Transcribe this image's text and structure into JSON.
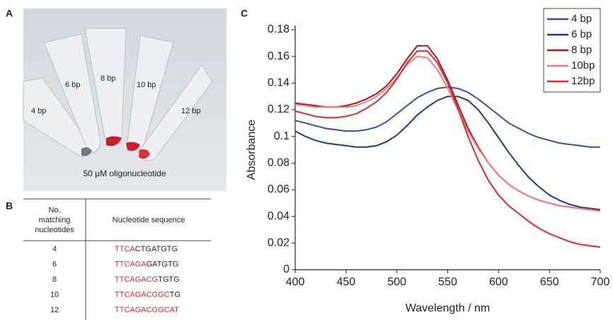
{
  "panels": {
    "a": "A",
    "b": "B",
    "c": "C"
  },
  "photo": {
    "tube_labels": [
      "4 bp",
      "6 bp",
      "8 bp",
      "10 bp",
      "12 bp"
    ],
    "caption": "50 μM oligonucleotide"
  },
  "table": {
    "header": [
      [
        "No.",
        "matching",
        "nucleotides"
      ],
      "Nucleotide sequence"
    ],
    "rows": [
      [
        "4",
        {
          "matching": "TTCA",
          "rest": "CTGATGTG"
        }
      ],
      [
        "6",
        {
          "matching": "TTCAGA",
          "rest": "GATGTG"
        }
      ],
      [
        "8",
        {
          "matching": "TTCAGACG",
          "rest": "TGTG"
        }
      ],
      [
        "10",
        {
          "matching": "TTCAGACGGC",
          "rest": "TG"
        }
      ],
      [
        "12",
        {
          "matching": "TTCAGACGGCAT",
          "rest": ""
        }
      ]
    ]
  },
  "chart_data": {
    "type": "line",
    "xlabel": "Wavelength / nm",
    "ylabel": "Absorbance",
    "x": [
      400,
      410,
      420,
      430,
      440,
      450,
      460,
      470,
      480,
      490,
      500,
      510,
      520,
      530,
      540,
      550,
      560,
      570,
      580,
      590,
      600,
      610,
      620,
      630,
      640,
      650,
      660,
      670,
      680,
      690,
      700
    ],
    "series": [
      {
        "name": "4 bp",
        "color": "#3a4ea6",
        "values": [
          0.112,
          0.11,
          0.108,
          0.106,
          0.105,
          0.104,
          0.104,
          0.105,
          0.107,
          0.111,
          0.117,
          0.123,
          0.129,
          0.133,
          0.136,
          0.137,
          0.136,
          0.133,
          0.128,
          0.122,
          0.116,
          0.11,
          0.106,
          0.102,
          0.099,
          0.097,
          0.095,
          0.094,
          0.093,
          0.092,
          0.092
        ]
      },
      {
        "name": "6 bp",
        "color": "#1c3a86",
        "values": [
          0.104,
          0.1,
          0.097,
          0.095,
          0.094,
          0.093,
          0.092,
          0.092,
          0.093,
          0.096,
          0.101,
          0.108,
          0.116,
          0.122,
          0.127,
          0.13,
          0.13,
          0.127,
          0.12,
          0.11,
          0.099,
          0.088,
          0.078,
          0.069,
          0.062,
          0.056,
          0.052,
          0.049,
          0.047,
          0.046,
          0.045
        ]
      },
      {
        "name": "8 bp",
        "color": "#a3161c",
        "values": [
          0.125,
          0.124,
          0.123,
          0.122,
          0.122,
          0.123,
          0.125,
          0.128,
          0.132,
          0.138,
          0.147,
          0.158,
          0.168,
          0.168,
          0.158,
          0.142,
          0.124,
          0.106,
          0.092,
          0.08,
          0.071,
          0.064,
          0.059,
          0.055,
          0.052,
          0.05,
          0.048,
          0.047,
          0.046,
          0.045,
          0.045
        ]
      },
      {
        "name": "10bp",
        "color": "#f07b7b",
        "values": [
          0.124,
          0.123,
          0.122,
          0.122,
          0.122,
          0.122,
          0.123,
          0.126,
          0.13,
          0.136,
          0.144,
          0.154,
          0.16,
          0.159,
          0.15,
          0.136,
          0.12,
          0.104,
          0.091,
          0.08,
          0.071,
          0.064,
          0.059,
          0.055,
          0.052,
          0.05,
          0.048,
          0.047,
          0.046,
          0.045,
          0.044
        ]
      },
      {
        "name": "12bp",
        "color": "#e3282e",
        "values": [
          0.119,
          0.117,
          0.115,
          0.114,
          0.114,
          0.115,
          0.117,
          0.121,
          0.126,
          0.133,
          0.143,
          0.155,
          0.164,
          0.164,
          0.155,
          0.14,
          0.121,
          0.1,
          0.082,
          0.067,
          0.056,
          0.048,
          0.042,
          0.036,
          0.031,
          0.027,
          0.024,
          0.021,
          0.019,
          0.018,
          0.017
        ]
      }
    ],
    "xlim": [
      400,
      700
    ],
    "xticks": [
      400,
      450,
      500,
      550,
      600,
      650,
      700
    ],
    "ylim": [
      0,
      0.18
    ],
    "yticks": [
      0,
      0.02,
      0.04,
      0.06,
      0.08,
      0.1,
      0.12,
      0.14,
      0.16,
      0.18
    ],
    "legend": "upper right"
  }
}
